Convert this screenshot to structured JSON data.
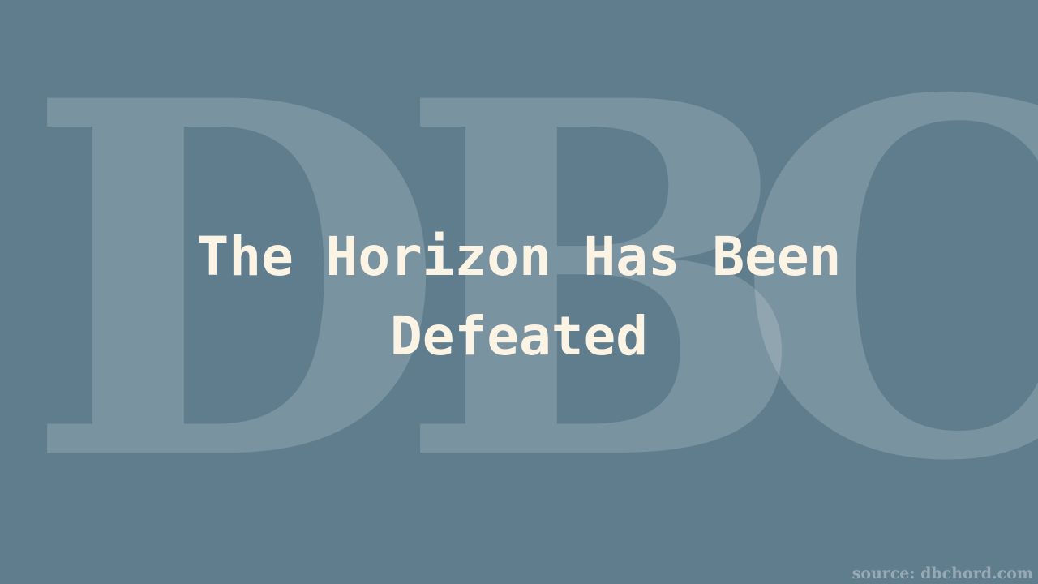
{
  "watermark": {
    "letters": [
      "D",
      "B",
      "C"
    ]
  },
  "title": {
    "line1": "The Horizon Has Been",
    "line2": "Defeated"
  },
  "source": {
    "text": "source: dbchord.com"
  },
  "colors": {
    "background": "#607d8e",
    "title_text": "#fbf3e4"
  }
}
